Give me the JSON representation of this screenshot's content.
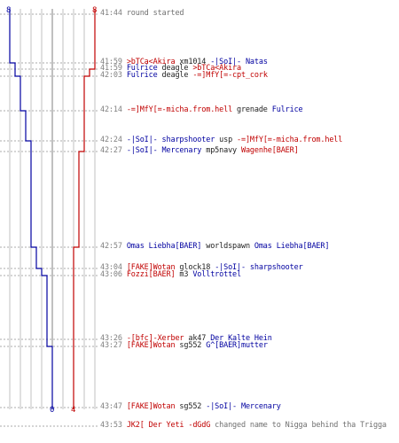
{
  "colors": {
    "team_blue": "#0000a0",
    "team_red": "#c00000",
    "grid": "#c0c0c0",
    "dashes": "#909090",
    "time": "#808080",
    "center_line": "#808080"
  },
  "scores": {
    "blue_top": "8",
    "red_top": "8",
    "blue_bottom": "0",
    "red_bottom": "4"
  },
  "events": [
    {
      "time": "41:44",
      "parts": [
        {
          "text": "round started",
          "c": "gray"
        }
      ]
    },
    {
      "time": "41:59",
      "parts": [
        {
          "text": ">bTCa<Akira",
          "c": "red"
        },
        {
          "text": " xm1014 ",
          "c": "blk"
        },
        {
          "text": "-|SoI|- Natas",
          "c": "blue"
        }
      ]
    },
    {
      "time": "41:59",
      "parts": [
        {
          "text": "Fulrice",
          "c": "blue"
        },
        {
          "text": " deagle ",
          "c": "blk"
        },
        {
          "text": ">bTCa<Akira",
          "c": "red"
        }
      ]
    },
    {
      "time": "42:03",
      "parts": [
        {
          "text": "Fulrice",
          "c": "blue"
        },
        {
          "text": " deagle ",
          "c": "blk"
        },
        {
          "text": "-=]MfY[=-cpt_cork",
          "c": "red"
        }
      ]
    },
    {
      "time": "42:14",
      "parts": [
        {
          "text": "-=]MfY[=-micha.from.hell",
          "c": "red"
        },
        {
          "text": " grenade ",
          "c": "blk"
        },
        {
          "text": "Fulrice",
          "c": "blue"
        }
      ]
    },
    {
      "time": "42:24",
      "parts": [
        {
          "text": "-|SoI|- sharpshooter",
          "c": "blue"
        },
        {
          "text": " usp ",
          "c": "blk"
        },
        {
          "text": "-=]MfY[=-micha.from.hell",
          "c": "red"
        }
      ]
    },
    {
      "time": "42:27",
      "parts": [
        {
          "text": "-|SoI|- Mercenary",
          "c": "blue"
        },
        {
          "text": " mp5navy ",
          "c": "blk"
        },
        {
          "text": "Wagenhe[BAER]",
          "c": "red"
        }
      ]
    },
    {
      "time": "42:57",
      "parts": [
        {
          "text": "Omas Liebha[BAER]",
          "c": "blue"
        },
        {
          "text": " worldspawn ",
          "c": "blk"
        },
        {
          "text": "Omas Liebha[BAER]",
          "c": "blue"
        }
      ]
    },
    {
      "time": "43:04",
      "parts": [
        {
          "text": "[FAKE]Wotan",
          "c": "red"
        },
        {
          "text": " glock18 ",
          "c": "blk"
        },
        {
          "text": "-|SoI|- sharpshooter",
          "c": "blue"
        }
      ]
    },
    {
      "time": "43:06",
      "parts": [
        {
          "text": "Fozzi[BAER]",
          "c": "red"
        },
        {
          "text": " m3 ",
          "c": "blk"
        },
        {
          "text": "Volltrottel",
          "c": "blue"
        }
      ]
    },
    {
      "time": "43:26",
      "parts": [
        {
          "text": "-[bfc]-Xerber",
          "c": "red"
        },
        {
          "text": " ak47 ",
          "c": "blk"
        },
        {
          "text": "Der Kalte Hein",
          "c": "blue"
        }
      ]
    },
    {
      "time": "43:27",
      "parts": [
        {
          "text": "[FAKE]Wotan",
          "c": "red"
        },
        {
          "text": " sg552 ",
          "c": "blk"
        },
        {
          "text": "G^[BAER]mutter",
          "c": "blue"
        }
      ]
    },
    {
      "time": "43:47",
      "parts": [
        {
          "text": "[FAKE]Wotan",
          "c": "red"
        },
        {
          "text": " sg552 ",
          "c": "blk"
        },
        {
          "text": "-|SoI|- Mercenary",
          "c": "blue"
        }
      ]
    },
    {
      "time": "43:53",
      "parts": [
        {
          "text": "JK2[ Der Yeti -dGdG",
          "c": "red"
        },
        {
          "text": " changed name to Nigga behind tha Trigga",
          "c": "gray"
        }
      ]
    }
  ],
  "chart_data": {
    "type": "line",
    "x_label": "",
    "y_label": "",
    "series": [
      {
        "color": "#0000a0",
        "points": [
          [
            0,
            8
          ],
          [
            1,
            7
          ],
          [
            3,
            6
          ],
          [
            4,
            5
          ],
          [
            5,
            4
          ],
          [
            6,
            4
          ],
          [
            7,
            3
          ],
          [
            8,
            2
          ],
          [
            9,
            1
          ],
          [
            10,
            1
          ],
          [
            11,
            0
          ]
        ]
      },
      {
        "color": "#c00000",
        "points": [
          [
            0,
            8
          ],
          [
            1,
            8
          ],
          [
            2,
            7
          ],
          [
            3,
            6
          ],
          [
            4,
            6
          ],
          [
            5,
            6
          ],
          [
            6,
            5
          ],
          [
            7,
            4
          ],
          [
            8,
            4
          ],
          [
            9,
            4
          ],
          [
            10,
            4
          ],
          [
            11,
            4
          ]
        ]
      }
    ]
  }
}
